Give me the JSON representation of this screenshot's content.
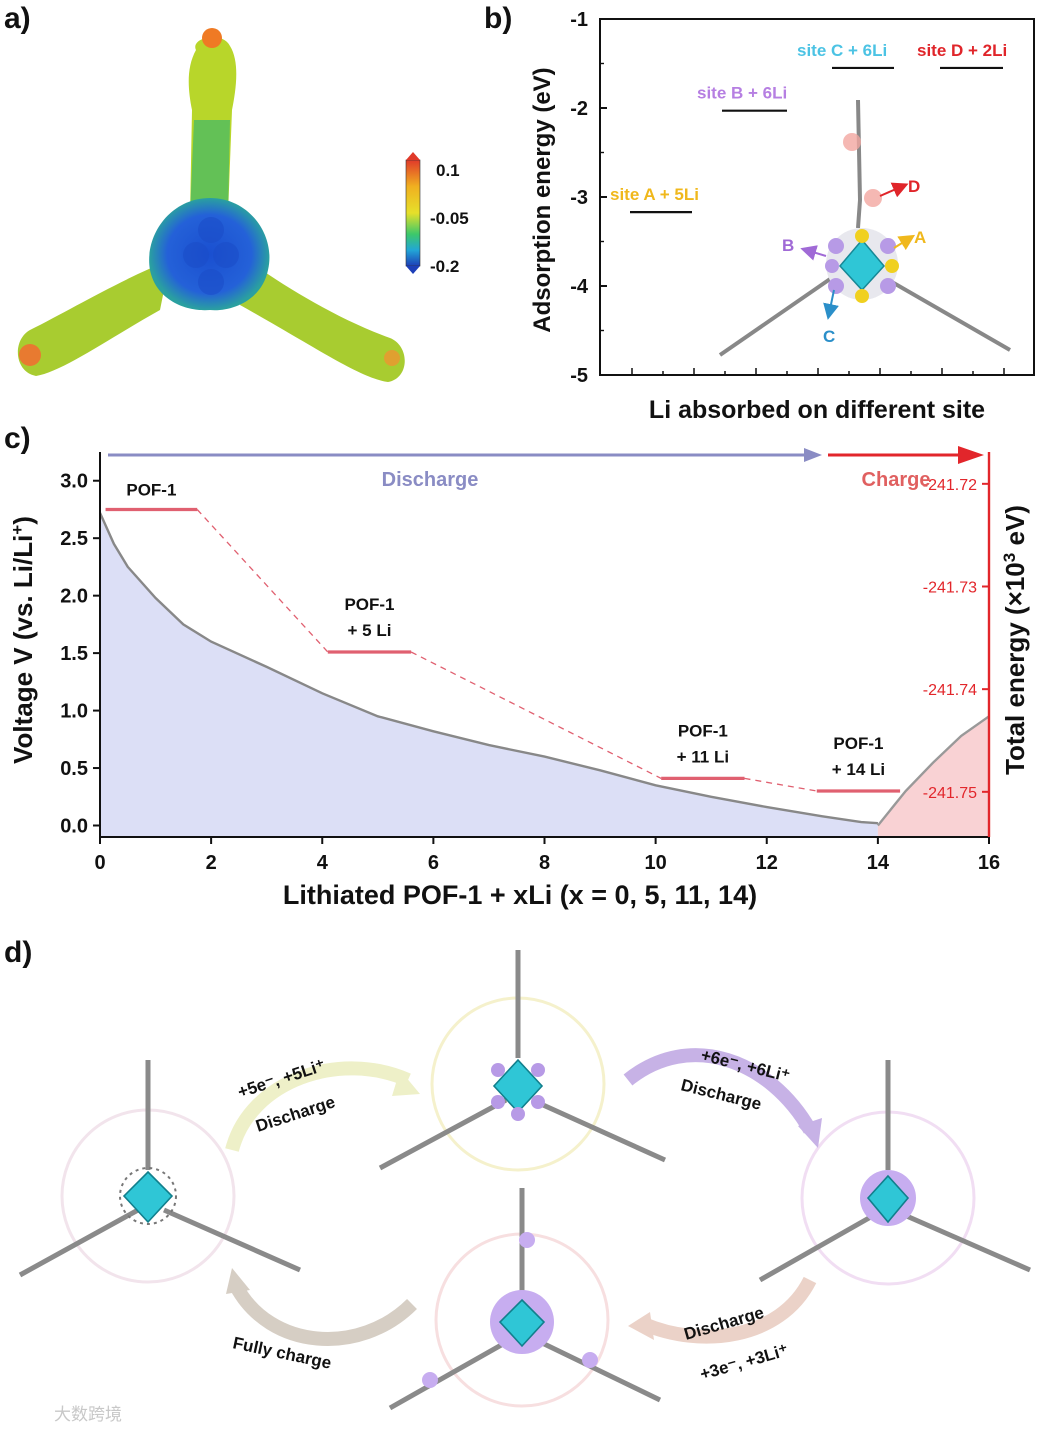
{
  "colors": {
    "teal": "#2fc6d6",
    "lilac": "#b79ae6",
    "red": "#e0252a",
    "yellow": "#f0b81c",
    "purple": "#a06ad6",
    "blue": "#2b8fc9",
    "discharge_arrow": "#8a8cc4",
    "charge_red": "#e2262b",
    "pink_line": "#e06070",
    "fill_blue": "#dcdff6",
    "fill_pink": "#f9d2d4",
    "curve": "#888888"
  },
  "panels": {
    "a_label": "a)",
    "b_label": "b)",
    "c_label": "c)",
    "d_label": "d)"
  },
  "colorbar": {
    "max_label": "0.1",
    "mid_label": "-0.05",
    "min_label": "-0.2"
  },
  "chart_data": [
    {
      "id": "b",
      "type": "scatter",
      "title": "",
      "xlabel": "Li absorbed on different site",
      "ylabel": "Adsorption energy (eV)",
      "ylim": [
        -5,
        -1
      ],
      "yticks": [
        "-1",
        "-2",
        "-3",
        "-4",
        "-5"
      ],
      "levels": [
        {
          "label": "site A + 5Li",
          "energy": -3.17,
          "x": 1,
          "color": "#f0b81c"
        },
        {
          "label": "site B + 6Li",
          "energy": -2.03,
          "x": 2,
          "color": "#b67fe2"
        },
        {
          "label": "site C + 6Li",
          "energy": -1.55,
          "x": 3,
          "color": "#4cc3e4"
        },
        {
          "label": "site D + 2Li",
          "energy": -1.55,
          "x": 4,
          "color": "#e0252a"
        }
      ],
      "site_markers": [
        "A",
        "B",
        "C",
        "D"
      ]
    },
    {
      "id": "c",
      "type": "area",
      "xlabel": "Lithiated POF-1 + xLi (x = 0, 5, 11, 14)",
      "ylabel_main": "Voltage V (vs. Li/Li",
      "ylabel_sup": "+",
      "ylabel_close": ")",
      "y2label_main": "Total energy (×10",
      "y2label_sup": "3",
      "y2label_unit": " eV)",
      "xlim": [
        0,
        16
      ],
      "ylim": [
        -0.1,
        3.25
      ],
      "xticks": [
        0,
        2,
        4,
        6,
        8,
        10,
        12,
        14,
        16
      ],
      "yticks": [
        0.0,
        0.5,
        1.0,
        1.5,
        2.0,
        2.5,
        3.0
      ],
      "ytick_labels": [
        "0.0",
        "0.5",
        "1.0",
        "1.5",
        "2.0",
        "2.5",
        "3.0"
      ],
      "discharge": {
        "x": [
          0,
          0.25,
          0.5,
          1,
          1.5,
          2,
          3,
          4,
          5,
          6,
          7,
          8,
          9,
          10,
          11,
          12,
          13,
          13.7,
          14
        ],
        "y": [
          2.72,
          2.45,
          2.25,
          1.98,
          1.75,
          1.6,
          1.38,
          1.15,
          0.95,
          0.82,
          0.7,
          0.6,
          0.48,
          0.35,
          0.25,
          0.16,
          0.08,
          0.03,
          0.02
        ]
      },
      "charge": {
        "x": [
          14,
          14.5,
          15,
          15.5,
          16
        ],
        "y": [
          0.0,
          0.3,
          0.55,
          0.78,
          0.95
        ]
      },
      "y2_ticks": [
        "-241.72",
        "-241.73",
        "-241.74",
        "-241.75"
      ],
      "y2_values": [
        -241.72,
        -241.73,
        -241.74,
        -241.75
      ],
      "energy_levels": [
        {
          "label": "POF-1",
          "label2": "",
          "x0": 0.1,
          "x1": 1.75,
          "y": 2.75
        },
        {
          "label": "POF-1",
          "label2": "+ 5 Li",
          "x0": 4.1,
          "x1": 5.6,
          "y": 1.51
        },
        {
          "label": "POF-1",
          "label2": "+ 11 Li",
          "x0": 10.1,
          "x1": 11.6,
          "y": 0.41
        },
        {
          "label": "POF-1",
          "label2": "+ 14 Li",
          "x0": 12.9,
          "x1": 14.4,
          "y": 0.3
        }
      ],
      "discharge_label": "Discharge",
      "charge_label": "Charge"
    }
  ],
  "scheme_d": {
    "step1_top": "+5e⁻, +5Li⁺",
    "step1_bottom": "Discharge",
    "step2_top": "+6e⁻, +6Li⁺",
    "step2_bottom": "Discharge",
    "step3_top": "Discharge",
    "step3_bottom": "+3e⁻, +3Li⁺",
    "step4": "Fully charge"
  },
  "watermark": "大数跨境"
}
